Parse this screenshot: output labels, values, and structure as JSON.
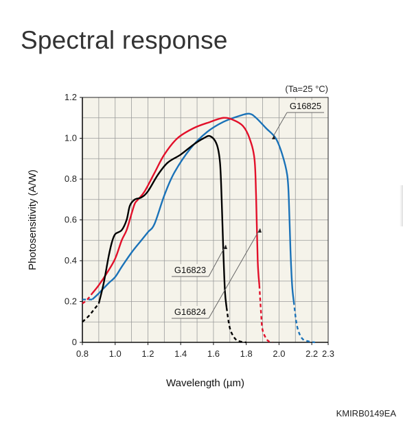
{
  "page": {
    "title": "Spectral response",
    "document_code": "KMIRB0149EA"
  },
  "colors": {
    "G16823": "#000000",
    "G16824": "#e2102a",
    "G16825": "#1a72b8",
    "plot_background": "#f5f3ea",
    "grid": "#9a9a9a"
  },
  "chart_data": {
    "type": "line",
    "title": "",
    "xlabel": "Wavelength (µm)",
    "ylabel": "Photosensitivity (A/W)",
    "annotation": "(Ta=25 °C)",
    "xlim": [
      0.8,
      2.3
    ],
    "ylim": [
      0,
      1.2
    ],
    "x_ticks": [
      0.8,
      1.0,
      1.2,
      1.4,
      1.6,
      1.8,
      2.0,
      2.2,
      2.3
    ],
    "x_tick_labels": [
      "0.8",
      "1.0",
      "1.2",
      "1.4",
      "1.6",
      "1.8",
      "2.0",
      "2.2",
      "2.3"
    ],
    "y_ticks": [
      0,
      0.2,
      0.4,
      0.6,
      0.8,
      1.0,
      1.2
    ],
    "y_tick_labels": [
      "0",
      "0.2",
      "0.4",
      "0.6",
      "0.8",
      "1.0",
      "1.2"
    ],
    "grid": true,
    "series": [
      {
        "name": "G16823",
        "color": "#000000",
        "solid": [
          [
            0.9,
            0.19
          ],
          [
            0.93,
            0.29
          ],
          [
            0.96,
            0.42
          ],
          [
            0.98,
            0.49
          ],
          [
            1.0,
            0.53
          ],
          [
            1.04,
            0.55
          ],
          [
            1.07,
            0.6
          ],
          [
            1.09,
            0.67
          ],
          [
            1.12,
            0.7
          ],
          [
            1.16,
            0.71
          ],
          [
            1.2,
            0.74
          ],
          [
            1.26,
            0.82
          ],
          [
            1.32,
            0.88
          ],
          [
            1.4,
            0.92
          ],
          [
            1.48,
            0.97
          ],
          [
            1.54,
            1.0
          ],
          [
            1.58,
            1.01
          ],
          [
            1.62,
            0.97
          ],
          [
            1.64,
            0.88
          ],
          [
            1.65,
            0.7
          ],
          [
            1.66,
            0.45
          ],
          [
            1.67,
            0.25
          ],
          [
            1.68,
            0.17
          ]
        ],
        "dashed_start": [
          [
            0.8,
            0.1
          ],
          [
            0.84,
            0.13
          ],
          [
            0.87,
            0.16
          ],
          [
            0.9,
            0.19
          ]
        ],
        "dashed_end": [
          [
            1.68,
            0.17
          ],
          [
            1.7,
            0.07
          ],
          [
            1.73,
            0.02
          ],
          [
            1.76,
            0.005
          ],
          [
            1.8,
            0.0
          ]
        ]
      },
      {
        "name": "G16824",
        "color": "#e2102a",
        "solid": [
          [
            0.86,
            0.24
          ],
          [
            0.9,
            0.28
          ],
          [
            0.95,
            0.34
          ],
          [
            1.0,
            0.41
          ],
          [
            1.04,
            0.5
          ],
          [
            1.07,
            0.55
          ],
          [
            1.1,
            0.63
          ],
          [
            1.12,
            0.68
          ],
          [
            1.14,
            0.7
          ],
          [
            1.18,
            0.74
          ],
          [
            1.24,
            0.83
          ],
          [
            1.3,
            0.92
          ],
          [
            1.38,
            1.0
          ],
          [
            1.48,
            1.05
          ],
          [
            1.58,
            1.08
          ],
          [
            1.66,
            1.1
          ],
          [
            1.72,
            1.09
          ],
          [
            1.78,
            1.06
          ],
          [
            1.82,
            1.0
          ],
          [
            1.85,
            0.9
          ],
          [
            1.86,
            0.72
          ],
          [
            1.87,
            0.4
          ],
          [
            1.88,
            0.28
          ]
        ],
        "dashed_start": [
          [
            0.8,
            0.19
          ],
          [
            0.83,
            0.21
          ],
          [
            0.86,
            0.24
          ]
        ],
        "dashed_end": [
          [
            1.88,
            0.28
          ],
          [
            1.89,
            0.15
          ],
          [
            1.9,
            0.06
          ],
          [
            1.93,
            0.01
          ],
          [
            1.96,
            0.0
          ]
        ]
      },
      {
        "name": "G16825",
        "color": "#1a72b8",
        "solid": [
          [
            0.86,
            0.21
          ],
          [
            0.9,
            0.24
          ],
          [
            0.96,
            0.29
          ],
          [
            1.0,
            0.32
          ],
          [
            1.04,
            0.37
          ],
          [
            1.1,
            0.44
          ],
          [
            1.16,
            0.5
          ],
          [
            1.2,
            0.54
          ],
          [
            1.24,
            0.58
          ],
          [
            1.3,
            0.72
          ],
          [
            1.36,
            0.83
          ],
          [
            1.46,
            0.95
          ],
          [
            1.56,
            1.03
          ],
          [
            1.66,
            1.08
          ],
          [
            1.76,
            1.11
          ],
          [
            1.82,
            1.12
          ],
          [
            1.86,
            1.1
          ],
          [
            1.92,
            1.05
          ],
          [
            1.98,
            1.0
          ],
          [
            2.02,
            0.92
          ],
          [
            2.05,
            0.82
          ],
          [
            2.06,
            0.7
          ],
          [
            2.07,
            0.45
          ],
          [
            2.08,
            0.28
          ],
          [
            2.09,
            0.2
          ]
        ],
        "dashed_start": [
          [
            0.8,
            0.21
          ],
          [
            0.83,
            0.21
          ],
          [
            0.86,
            0.21
          ]
        ],
        "dashed_end": [
          [
            2.09,
            0.2
          ],
          [
            2.11,
            0.08
          ],
          [
            2.14,
            0.02
          ],
          [
            2.18,
            0.005
          ],
          [
            2.22,
            0.0
          ]
        ]
      }
    ],
    "labels": [
      {
        "text": "G16825",
        "series": "G16825"
      },
      {
        "text": "G16823",
        "series": "G16823"
      },
      {
        "text": "G16824",
        "series": "G16824"
      }
    ]
  }
}
